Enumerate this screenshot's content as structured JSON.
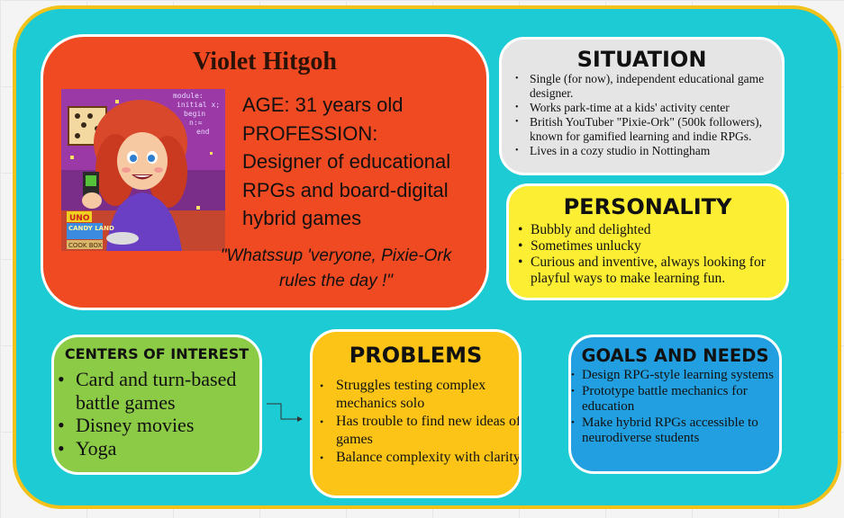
{
  "profile": {
    "name": "Violet Hitgoh",
    "age_line": "AGE: 31 years old",
    "profession_label": "PROFESSION:",
    "profession": "Designer of educational RPGs and board-digital hybrid games",
    "quote": "\"Whatssup 'veryone, Pixie-Ork rules the day !\"",
    "avatar_icon": "pixel-art-portrait-icon",
    "avatar_text": {
      "code_lines": [
        "module:",
        "initial x;",
        "begin",
        "n:=",
        "end"
      ],
      "uno": "UNO",
      "candy_land": "CANDY LAND",
      "cook_box": "COOK BOX"
    }
  },
  "situation": {
    "title": "SITUATION",
    "items": [
      "Single (for now), independent educational game designer.",
      "Works park-time at a kids' activity center",
      "British YouTuber \"Pixie-Ork\" (500k followers), known for gamified learning and indie RPGs.",
      "Lives in a cozy studio in Nottingham"
    ]
  },
  "personality": {
    "title": "PERSONALITY",
    "items": [
      "Bubbly and delighted",
      "Sometimes unlucky",
      "Curious and inventive, always looking for playful ways to make learning fun."
    ]
  },
  "interests": {
    "title": "CENTERS OF INTEREST",
    "items": [
      "Card and turn-based battle games",
      "Disney movies",
      "Yoga"
    ]
  },
  "problems": {
    "title": "PROBLEMS",
    "items": [
      "Struggles testing complex mechanics solo",
      "Has trouble to find new ideas of games",
      "Balance complexity with clarity"
    ]
  },
  "goals": {
    "title": "GOALS AND NEEDS",
    "items": [
      "Design RPG-style learning systems",
      "Prototype battle mechanics for education",
      "Make hybrid RPGs accessible to neurodiverse students"
    ]
  },
  "colors": {
    "board": "#1ccbd3",
    "board_border": "#f2c21b",
    "profile": "#f04a23",
    "situation": "#e5e5e5",
    "personality": "#fbee33",
    "interests": "#8ccb46",
    "problems": "#fbc417",
    "goals": "#219fe0"
  }
}
